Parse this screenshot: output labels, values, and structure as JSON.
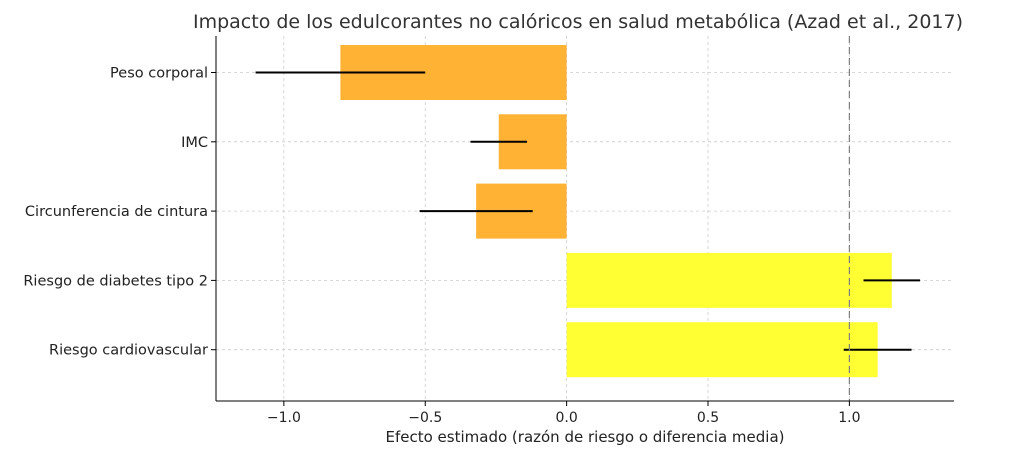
{
  "chart_data": {
    "type": "bar",
    "orientation": "horizontal",
    "title": "Impacto de los edulcorantes no calóricos en salud metabólica (Azad et al., 2017)",
    "xlabel": "Efecto estimado (razón de riesgo o diferencia media)",
    "ylabel": "",
    "xlim": [
      -1.24,
      1.37
    ],
    "xticks": [
      -1.0,
      -0.5,
      0.0,
      0.5,
      1.0
    ],
    "xtick_labels": [
      "−1.0",
      "−0.5",
      "0.0",
      "0.5",
      "1.0"
    ],
    "grid": true,
    "reference_line": 1.0,
    "categories": [
      "Peso corporal",
      "IMC",
      "Circunferencia de cintura",
      "Riesgo de diabetes tipo 2",
      "Riesgo cardiovascular"
    ],
    "values": [
      -0.8,
      -0.24,
      -0.32,
      1.15,
      1.1
    ],
    "error_low": [
      -1.1,
      -0.34,
      -0.52,
      1.05,
      0.98
    ],
    "error_high": [
      -0.5,
      -0.14,
      -0.12,
      1.25,
      1.22
    ],
    "colors": [
      "#ffb233",
      "#ffb233",
      "#ffb233",
      "#ffff33",
      "#ffff33"
    ]
  }
}
